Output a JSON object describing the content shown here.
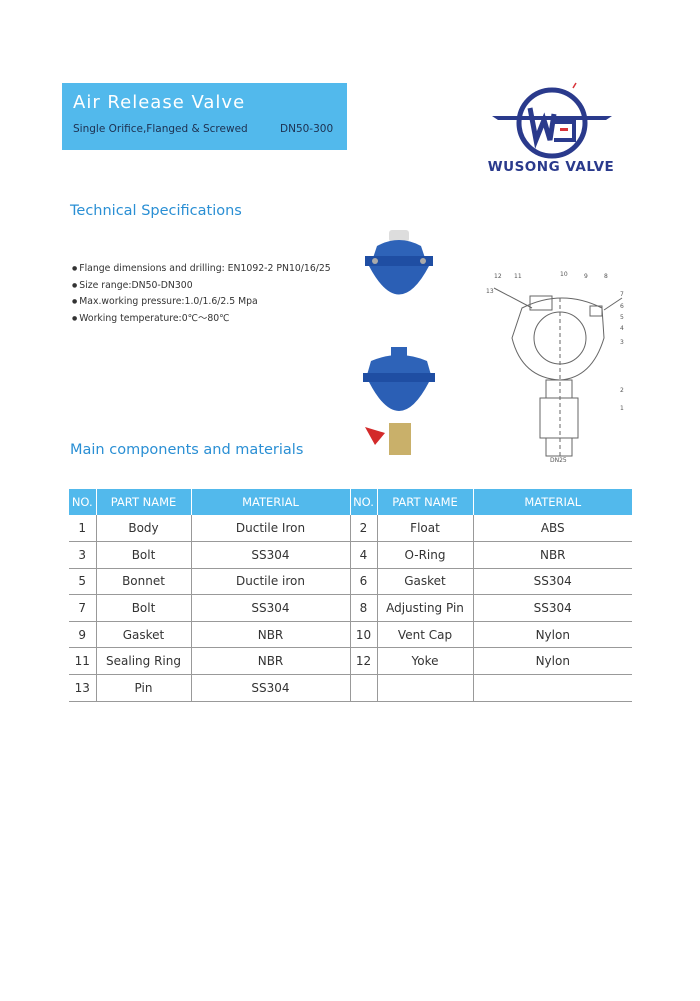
{
  "banner": {
    "title": "Air Release Valve",
    "subtitle": "Single Orifice,Flanged & Screwed",
    "size": "DN50-300"
  },
  "logo": {
    "text": "WUSONG VALVE",
    "colors": {
      "primary": "#2a3a8c",
      "accent": "#d8343a"
    }
  },
  "sections": {
    "specs_title": "Technical Specifications",
    "components_title": "Main components and materials"
  },
  "specs": [
    "Flange dimensions and drilling: EN1092-2 PN10/16/25",
    "Size range:DN50-DN300",
    "Max.working pressure:1.0/1.6/2.5 Mpa",
    "Working temperature:0℃～80℃"
  ],
  "drawing": {
    "caption": "DN25",
    "labels": [
      "1",
      "2",
      "3",
      "4",
      "5",
      "6",
      "7",
      "8",
      "9",
      "10",
      "11",
      "12",
      "13"
    ]
  },
  "table": {
    "headers": [
      "NO.",
      "PART NAME",
      "MATERIAL",
      "NO.",
      "PART NAME",
      "MATERIAL"
    ],
    "rows": [
      [
        "1",
        "Body",
        "Ductile Iron",
        "2",
        "Float",
        "ABS"
      ],
      [
        "3",
        "Bolt",
        "SS304",
        "4",
        "O-Ring",
        "NBR"
      ],
      [
        "5",
        "Bonnet",
        "Ductile iron",
        "6",
        "Gasket",
        "SS304"
      ],
      [
        "7",
        "Bolt",
        "SS304",
        "8",
        "Adjusting Pin",
        "SS304"
      ],
      [
        "9",
        "Gasket",
        "NBR",
        "10",
        "Vent Cap",
        "Nylon"
      ],
      [
        "11",
        "Sealing Ring",
        "NBR",
        "12",
        "Yoke",
        "Nylon"
      ],
      [
        "13",
        "Pin",
        "SS304",
        "",
        "",
        ""
      ]
    ]
  },
  "colors": {
    "banner": "#52b9ec",
    "heading": "#2a8fd4"
  }
}
